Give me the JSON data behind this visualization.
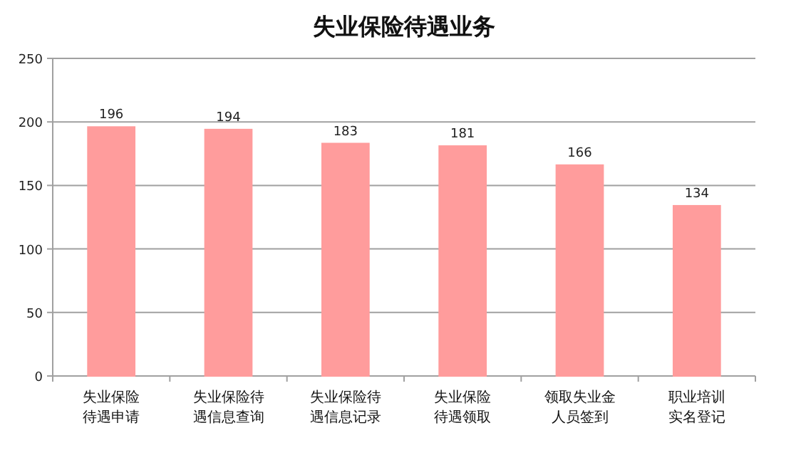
{
  "chart_data": {
    "type": "bar",
    "title": "失业保险待遇业务",
    "categories": [
      "失业保险待遇申请",
      "失业保险待遇信息查询",
      "失业保险待遇信息记录",
      "失业保险待遇领取",
      "领取失业金人员签到",
      "职业培训实名登记"
    ],
    "values": [
      196,
      194,
      183,
      181,
      166,
      134
    ],
    "color": "#ff9c9c",
    "ylim": [
      0,
      250
    ],
    "yticks": [
      0,
      50,
      100,
      150,
      200,
      250
    ],
    "grid": "y",
    "data_labels": true
  }
}
